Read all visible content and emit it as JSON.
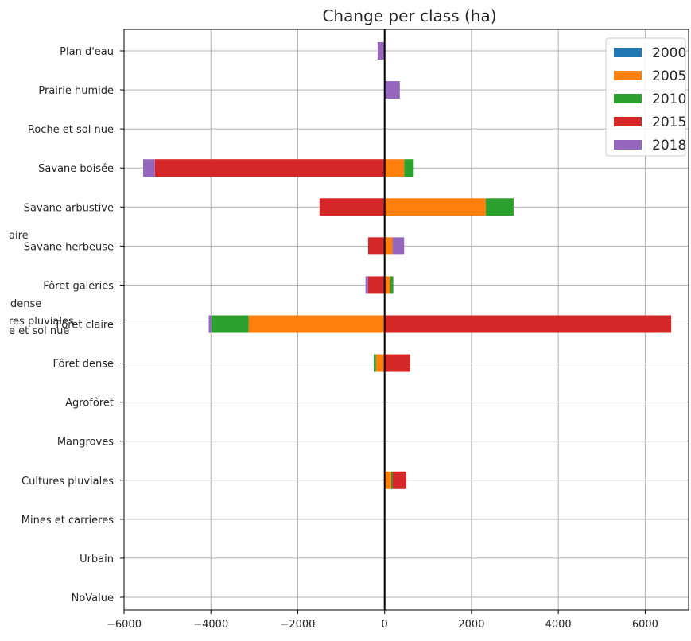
{
  "chart_data": {
    "type": "bar",
    "orientation": "horizontal",
    "stacked": "diverging",
    "title": "Change per class (ha)",
    "xlabel": "",
    "ylabel": "",
    "xlim": [
      -6000,
      7000
    ],
    "xticks": [
      -6000,
      -4000,
      -2000,
      0,
      2000,
      4000,
      6000
    ],
    "xtick_labels": [
      "−6000",
      "−4000",
      "−2000",
      "0",
      "2000",
      "4000",
      "6000"
    ],
    "grid": true,
    "legend_position": "top-right",
    "categories": [
      "Plan d'eau",
      "Prairie humide",
      "Roche et sol nue",
      "Savane boisée",
      "Savane arbustive",
      "Savane herbeuse",
      "Fôret galeries",
      "Fôret claire",
      "Fôret dense",
      "Agrofôret",
      "Mangroves",
      "Cultures pluviales",
      "Mines et carrieres",
      "Urbain",
      "NoValue"
    ],
    "series": [
      {
        "name": "2000",
        "color": "#1f77b4",
        "values": [
          0,
          0,
          0,
          0,
          0,
          0,
          0,
          0,
          0,
          0,
          0,
          0,
          0,
          0,
          0
        ]
      },
      {
        "name": "2005",
        "color": "#ff7f0e",
        "values": [
          0,
          0,
          0,
          450,
          2330,
          180,
          130,
          -3130,
          -200,
          0,
          0,
          150,
          0,
          0,
          0
        ]
      },
      {
        "name": "2010",
        "color": "#2ca02c",
        "values": [
          0,
          0,
          0,
          220,
          640,
          0,
          70,
          -860,
          -50,
          0,
          0,
          30,
          0,
          0,
          0
        ]
      },
      {
        "name": "2015",
        "color": "#d62728",
        "values": [
          0,
          0,
          0,
          -5290,
          -1500,
          -380,
          -380,
          6600,
          590,
          0,
          0,
          320,
          0,
          0,
          0
        ]
      },
      {
        "name": "2018",
        "color": "#9467bd",
        "values": [
          -160,
          350,
          0,
          -270,
          0,
          270,
          -60,
          -60,
          0,
          0,
          0,
          0,
          0,
          0,
          0
        ]
      }
    ],
    "overlapping_labels": [
      "aire",
      "dense",
      "res pluviales",
      "e et sol nue"
    ]
  }
}
